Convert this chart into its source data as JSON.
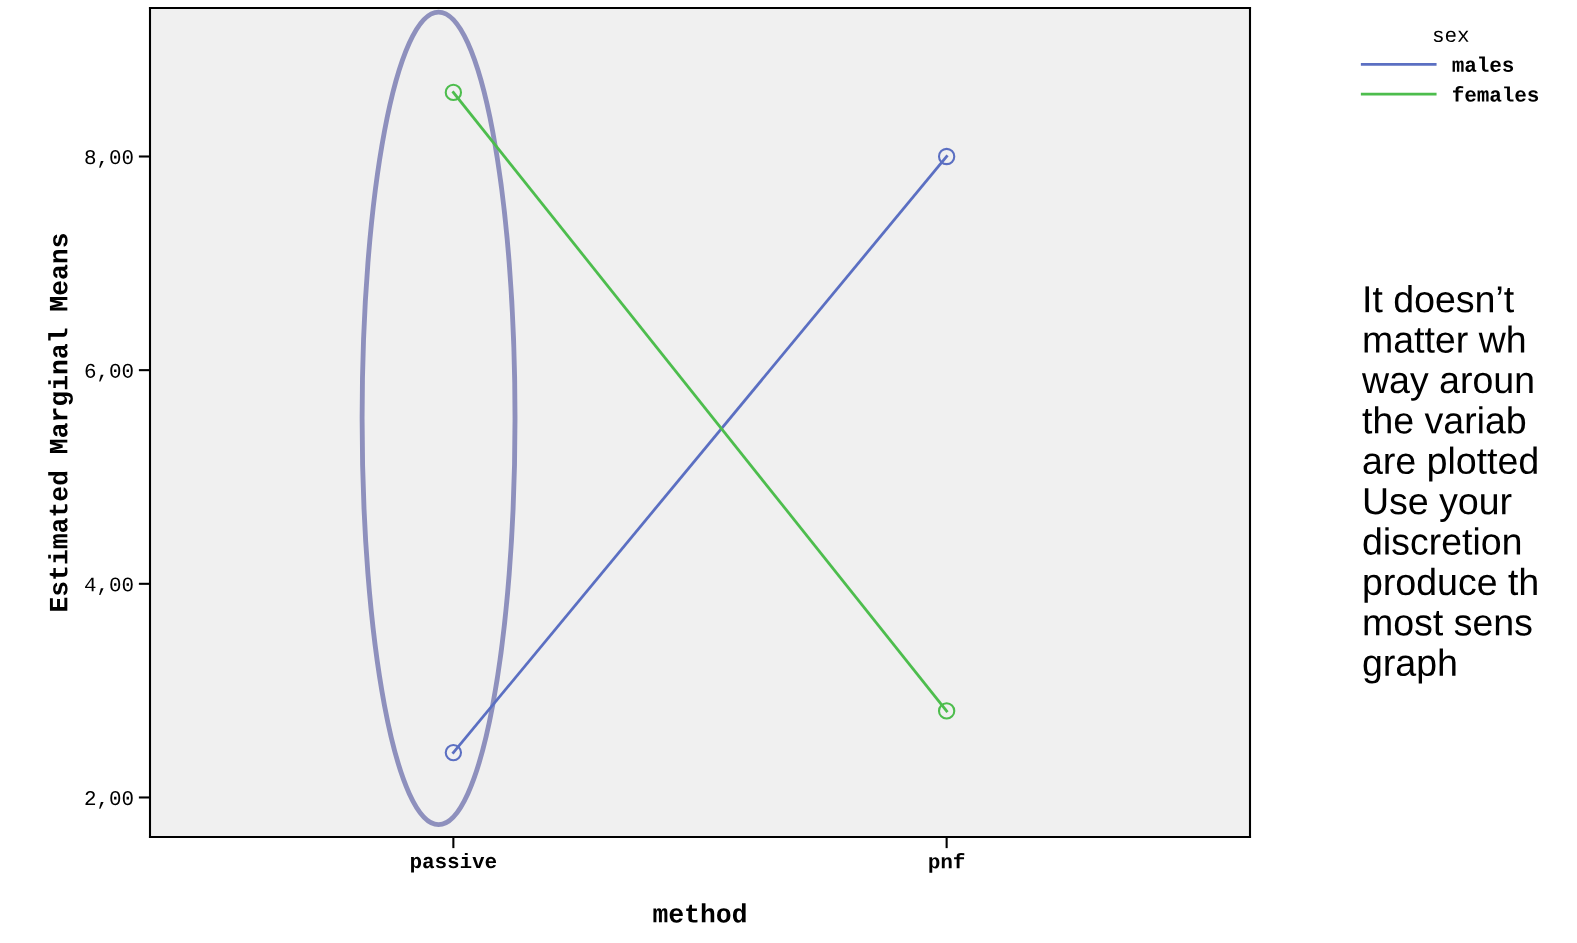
{
  "chart_data": {
    "type": "line",
    "xlabel": "method",
    "ylabel": "Estimated Marginal Means",
    "legend_title": "sex",
    "categories": [
      "passive",
      "pnf"
    ],
    "series": [
      {
        "name": "males",
        "color": "#5b6fc2",
        "values": [
          2.42,
          8.0
        ]
      },
      {
        "name": "females",
        "color": "#4dbd4d",
        "values": [
          8.6,
          2.81
        ]
      }
    ],
    "ylim": [
      1.63,
      9.39
    ],
    "yticks": [
      {
        "value": 2,
        "label": "2,00"
      },
      {
        "value": 4,
        "label": "4,00"
      },
      {
        "value": 6,
        "label": "6,00"
      },
      {
        "value": 8,
        "label": "8,00"
      }
    ],
    "marker": "circle",
    "line_style": "solid",
    "grid": false,
    "legend": "top right",
    "annotations": [
      "It doesn’t\nmatter wh\nway aroun\nthe variab\nare plotted\nUse your\ndiscretion\nproduce th\nmost sens\ngraph"
    ]
  }
}
